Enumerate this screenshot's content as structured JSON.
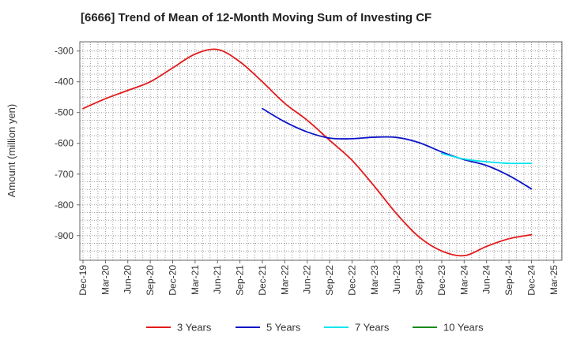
{
  "chart_data": {
    "type": "line",
    "title": "[6666]  Trend of Mean of 12-Month Moving Sum of Investing CF",
    "xlabel": "",
    "ylabel": "Amount (million yen)",
    "ylim": [
      -980,
      -270
    ],
    "yticks": [
      -300,
      -400,
      -500,
      -600,
      -700,
      -800,
      -900
    ],
    "categories": [
      "Dec-19",
      "Mar-20",
      "Jun-20",
      "Sep-20",
      "Dec-20",
      "Mar-21",
      "Jun-21",
      "Sep-21",
      "Dec-21",
      "Mar-22",
      "Jun-22",
      "Sep-22",
      "Dec-22",
      "Mar-23",
      "Jun-23",
      "Sep-23",
      "Dec-23",
      "Mar-24",
      "Jun-24",
      "Sep-24",
      "Dec-24",
      "Mar-25"
    ],
    "grid": true,
    "legend_position": "bottom",
    "series": [
      {
        "name": "3 Years",
        "color": "#e31a1c",
        "values": [
          -487,
          -455,
          -428,
          -400,
          -355,
          -310,
          -295,
          -335,
          -400,
          -470,
          -525,
          -590,
          -655,
          -740,
          -830,
          -905,
          -950,
          -965,
          -935,
          -910,
          -897,
          null
        ]
      },
      {
        "name": "5 Years",
        "color": "#0a14c8",
        "values": [
          null,
          null,
          null,
          null,
          null,
          null,
          null,
          null,
          -487,
          -530,
          -563,
          -583,
          -585,
          -580,
          -581,
          -598,
          -628,
          -653,
          -672,
          -705,
          -748,
          null
        ]
      },
      {
        "name": "7 Years",
        "color": "#00e5ee",
        "values": [
          null,
          null,
          null,
          null,
          null,
          null,
          null,
          null,
          null,
          null,
          null,
          null,
          null,
          null,
          null,
          null,
          -633,
          -651,
          -660,
          -665,
          -665,
          null
        ]
      },
      {
        "name": "10 Years",
        "color": "#1a8a1a",
        "values": [
          null,
          null,
          null,
          null,
          null,
          null,
          null,
          null,
          null,
          null,
          null,
          null,
          null,
          null,
          null,
          null,
          null,
          null,
          null,
          null,
          null,
          null
        ]
      }
    ]
  }
}
